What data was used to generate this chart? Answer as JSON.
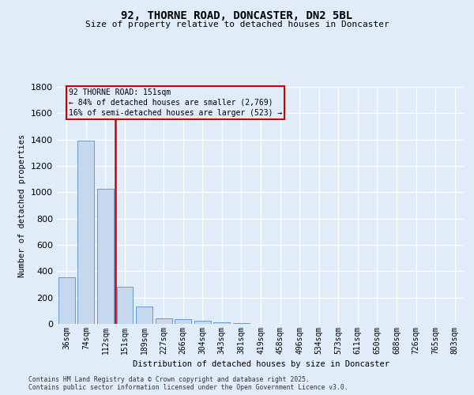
{
  "title_line1": "92, THORNE ROAD, DONCASTER, DN2 5BL",
  "title_line2": "Size of property relative to detached houses in Doncaster",
  "xlabel": "Distribution of detached houses by size in Doncaster",
  "ylabel": "Number of detached properties",
  "categories": [
    "36sqm",
    "74sqm",
    "112sqm",
    "151sqm",
    "189sqm",
    "227sqm",
    "266sqm",
    "304sqm",
    "343sqm",
    "381sqm",
    "419sqm",
    "458sqm",
    "496sqm",
    "534sqm",
    "573sqm",
    "611sqm",
    "650sqm",
    "688sqm",
    "726sqm",
    "765sqm",
    "803sqm"
  ],
  "values": [
    355,
    1395,
    1025,
    285,
    130,
    45,
    35,
    25,
    15,
    5,
    0,
    0,
    0,
    0,
    0,
    0,
    0,
    0,
    0,
    0,
    0
  ],
  "bar_color": "#c5d8ee",
  "bar_edge_color": "#6699cc",
  "vline_color": "#cc0000",
  "vline_x": 2.5,
  "annotation_text": "92 THORNE ROAD: 151sqm\n← 84% of detached houses are smaller (2,769)\n16% of semi-detached houses are larger (523) →",
  "ylim": [
    0,
    1800
  ],
  "yticks": [
    0,
    200,
    400,
    600,
    800,
    1000,
    1200,
    1400,
    1600,
    1800
  ],
  "background_color": "#e0ecf8",
  "grid_color": "#ffffff",
  "footer": "Contains HM Land Registry data © Crown copyright and database right 2025.\nContains public sector information licensed under the Open Government Licence v3.0."
}
